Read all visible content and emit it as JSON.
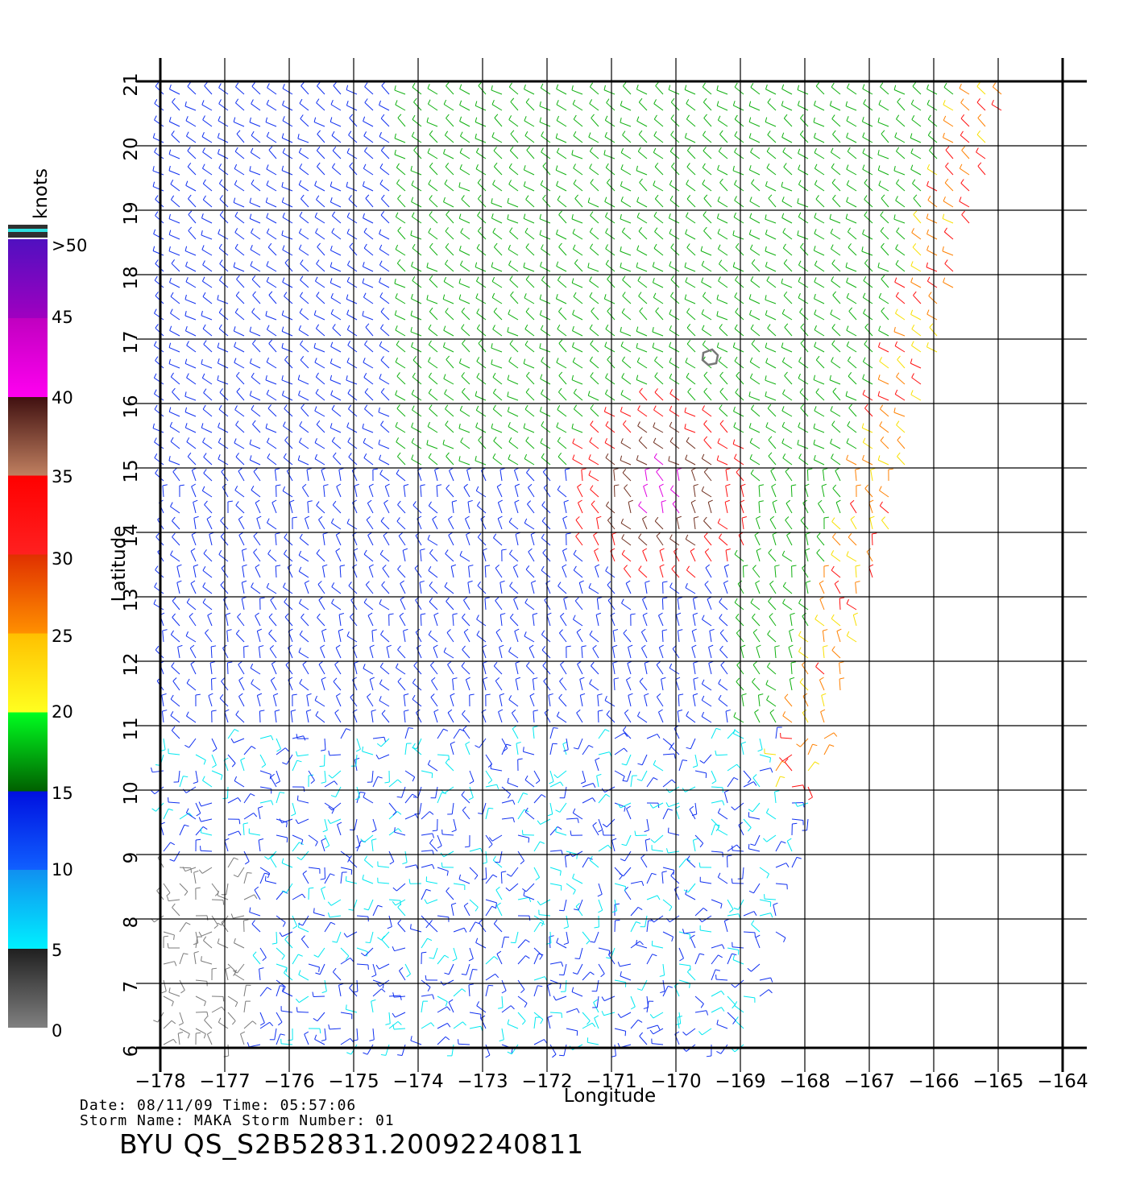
{
  "map": {
    "lon_range": [
      -178,
      -164
    ],
    "lat_range": [
      6,
      21
    ],
    "lon_ticks": [
      "−178",
      "−177",
      "−176",
      "−175",
      "−174",
      "−173",
      "−172",
      "−171",
      "−170",
      "−169",
      "−168",
      "−167",
      "−166",
      "−165",
      "−164"
    ],
    "lat_ticks": [
      "6",
      "7",
      "8",
      "9",
      "10",
      "11",
      "12",
      "13",
      "14",
      "15",
      "16",
      "17",
      "18",
      "19",
      "20",
      "21"
    ],
    "xlabel": "Longitude",
    "ylabel": "Latitude",
    "land": "small island near 16.7°N, 169.5°W"
  },
  "colorbar": {
    "title": "knots",
    "labels": [
      ">50",
      "45",
      "40",
      "35",
      "30",
      "25",
      "20",
      "15",
      "10",
      "5",
      "0"
    ],
    "colors": {
      "0_5": "#7a7a7a",
      "5_10": "#00e8f0",
      "10_15": "#1030f0",
      "15_20": "#10b010",
      "20_25": "#f8e000",
      "25_30": "#ff8000",
      "30_35": "#ff1010",
      "35_40": "#703020",
      "40_45": "#e000e0",
      "45_50": "#7000c0"
    }
  },
  "info": {
    "date_line": "Date: 08/11/09   Time: 05:57:06",
    "storm_line": "Storm Name: MAKA   Storm Number: 01",
    "banner": "BYU QS_S2B52831.20092240811"
  }
}
